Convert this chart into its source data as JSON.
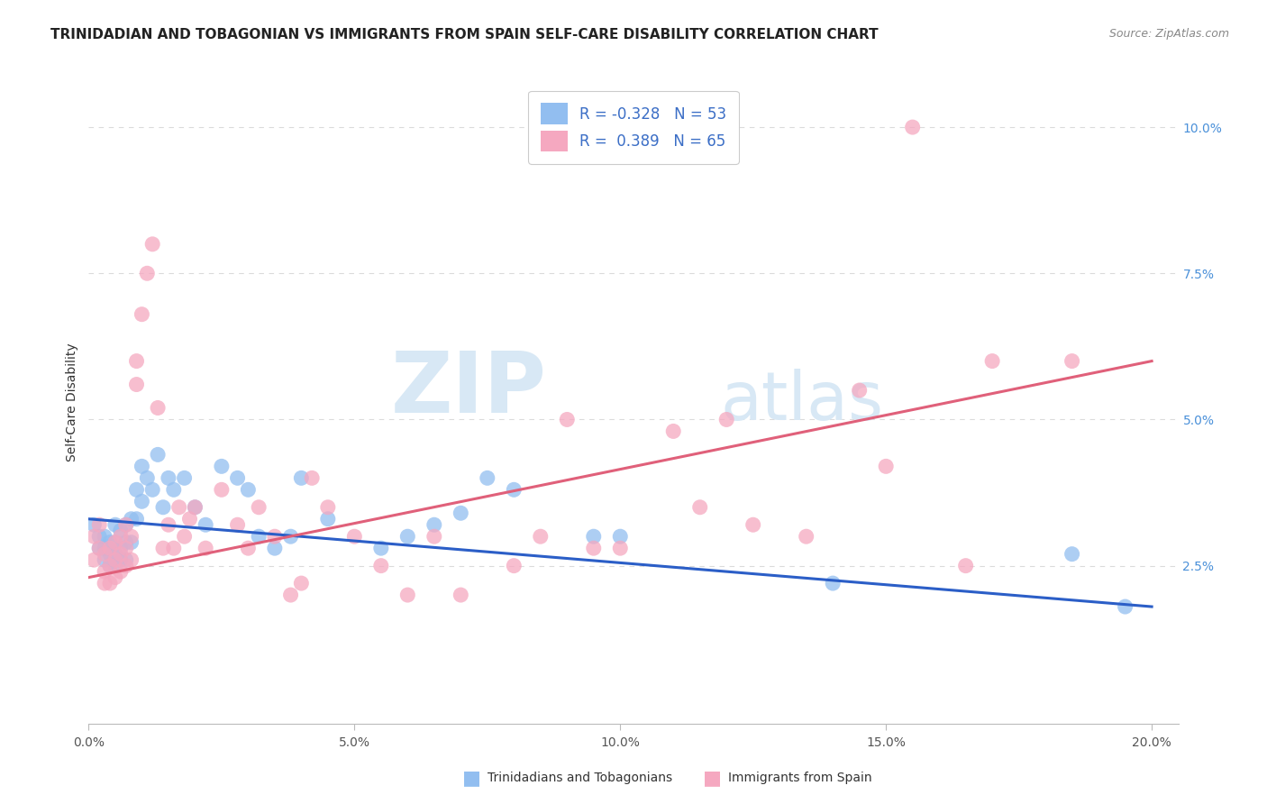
{
  "title": "TRINIDADIAN AND TOBAGONIAN VS IMMIGRANTS FROM SPAIN SELF-CARE DISABILITY CORRELATION CHART",
  "source": "Source: ZipAtlas.com",
  "ylabel": "Self-Care Disability",
  "xlim": [
    0.0,
    0.205
  ],
  "ylim": [
    -0.002,
    0.108
  ],
  "xticks": [
    0.0,
    0.05,
    0.1,
    0.15,
    0.2
  ],
  "xticklabels": [
    "0.0%",
    "5.0%",
    "10.0%",
    "15.0%",
    "20.0%"
  ],
  "yticks": [
    0.025,
    0.05,
    0.075,
    0.1
  ],
  "yticklabels": [
    "2.5%",
    "5.0%",
    "7.5%",
    "10.0%"
  ],
  "legend_r_blue": "-0.328",
  "legend_n_blue": "53",
  "legend_r_pink": "0.389",
  "legend_n_pink": "65",
  "blue_color": "#92BEF0",
  "pink_color": "#F5A8C0",
  "blue_line_color": "#2B5EC7",
  "pink_line_color": "#E0607A",
  "grid_color": "#CCCCCC",
  "background_color": "#FFFFFF",
  "watermark_zip": "ZIP",
  "watermark_atlas": "atlas",
  "title_fontsize": 11,
  "source_fontsize": 9,
  "axis_fontsize": 10,
  "tick_fontsize": 10,
  "blue_x": [
    0.001,
    0.002,
    0.002,
    0.003,
    0.003,
    0.003,
    0.004,
    0.004,
    0.004,
    0.005,
    0.005,
    0.005,
    0.005,
    0.006,
    0.006,
    0.006,
    0.007,
    0.007,
    0.007,
    0.008,
    0.008,
    0.009,
    0.009,
    0.01,
    0.01,
    0.011,
    0.012,
    0.013,
    0.014,
    0.015,
    0.016,
    0.018,
    0.02,
    0.022,
    0.025,
    0.028,
    0.03,
    0.032,
    0.035,
    0.038,
    0.04,
    0.045,
    0.055,
    0.06,
    0.065,
    0.07,
    0.075,
    0.08,
    0.095,
    0.1,
    0.14,
    0.185,
    0.195
  ],
  "blue_y": [
    0.032,
    0.03,
    0.028,
    0.03,
    0.028,
    0.026,
    0.029,
    0.027,
    0.025,
    0.032,
    0.029,
    0.027,
    0.025,
    0.031,
    0.028,
    0.026,
    0.032,
    0.029,
    0.026,
    0.033,
    0.029,
    0.038,
    0.033,
    0.042,
    0.036,
    0.04,
    0.038,
    0.044,
    0.035,
    0.04,
    0.038,
    0.04,
    0.035,
    0.032,
    0.042,
    0.04,
    0.038,
    0.03,
    0.028,
    0.03,
    0.04,
    0.033,
    0.028,
    0.03,
    0.032,
    0.034,
    0.04,
    0.038,
    0.03,
    0.03,
    0.022,
    0.027,
    0.018
  ],
  "pink_x": [
    0.001,
    0.001,
    0.002,
    0.002,
    0.003,
    0.003,
    0.003,
    0.004,
    0.004,
    0.004,
    0.005,
    0.005,
    0.005,
    0.006,
    0.006,
    0.006,
    0.007,
    0.007,
    0.007,
    0.008,
    0.008,
    0.009,
    0.009,
    0.01,
    0.011,
    0.012,
    0.013,
    0.014,
    0.015,
    0.016,
    0.017,
    0.018,
    0.019,
    0.02,
    0.022,
    0.025,
    0.028,
    0.03,
    0.032,
    0.035,
    0.038,
    0.04,
    0.042,
    0.045,
    0.05,
    0.055,
    0.06,
    0.065,
    0.07,
    0.08,
    0.085,
    0.09,
    0.095,
    0.1,
    0.11,
    0.115,
    0.12,
    0.125,
    0.135,
    0.145,
    0.15,
    0.155,
    0.165,
    0.17,
    0.185
  ],
  "pink_y": [
    0.03,
    0.026,
    0.032,
    0.028,
    0.027,
    0.024,
    0.022,
    0.028,
    0.025,
    0.022,
    0.029,
    0.026,
    0.023,
    0.03,
    0.027,
    0.024,
    0.032,
    0.028,
    0.025,
    0.03,
    0.026,
    0.06,
    0.056,
    0.068,
    0.075,
    0.08,
    0.052,
    0.028,
    0.032,
    0.028,
    0.035,
    0.03,
    0.033,
    0.035,
    0.028,
    0.038,
    0.032,
    0.028,
    0.035,
    0.03,
    0.02,
    0.022,
    0.04,
    0.035,
    0.03,
    0.025,
    0.02,
    0.03,
    0.02,
    0.025,
    0.03,
    0.05,
    0.028,
    0.028,
    0.048,
    0.035,
    0.05,
    0.032,
    0.03,
    0.055,
    0.042,
    0.1,
    0.025,
    0.06,
    0.06
  ],
  "blue_trendline_x": [
    0.0,
    0.2
  ],
  "blue_trendline_y": [
    0.033,
    0.018
  ],
  "pink_trendline_x": [
    0.0,
    0.2
  ],
  "pink_trendline_y": [
    0.023,
    0.06
  ]
}
